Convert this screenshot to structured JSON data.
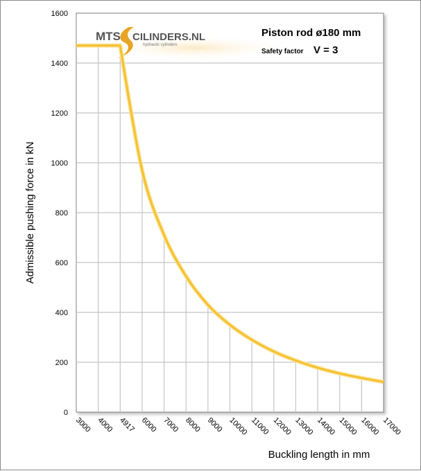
{
  "chart_data": {
    "type": "line",
    "xlabel": "Buckling length in mm",
    "ylabel": "Admissible pushing force in kN",
    "x_ticks": [
      "3000",
      "4000",
      "4917",
      "6000",
      "7000",
      "8000",
      "9000",
      "10000",
      "11000",
      "12000",
      "13000",
      "14000",
      "15000",
      "16000",
      "17000"
    ],
    "y_ticks": [
      "0",
      "200",
      "400",
      "600",
      "800",
      "1000",
      "1200",
      "1400",
      "1600"
    ],
    "ylim": [
      0,
      1600
    ],
    "grid": true,
    "series": [
      {
        "points": [
          [
            "3000",
            1470
          ],
          [
            "4000",
            1470
          ],
          [
            "4917",
            1470
          ],
          [
            "6000",
            970
          ],
          [
            "7000",
            710
          ],
          [
            "8000",
            545
          ],
          [
            "9000",
            430
          ],
          [
            "10000",
            350
          ],
          [
            "11000",
            290
          ],
          [
            "12000",
            243
          ],
          [
            "13000",
            207
          ],
          [
            "14000",
            178
          ],
          [
            "15000",
            155
          ],
          [
            "16000",
            137
          ],
          [
            "17000",
            121
          ]
        ]
      }
    ],
    "annotations": {
      "title_line1": "Piston rod ø180 mm",
      "safety_label": "Safety factor",
      "safety_value": "V = 3"
    },
    "logo": {
      "brand": "MTS",
      "brand_suffix": "CILINDERS.NL",
      "tagline": "hydraulic cylinders"
    },
    "colors": {
      "line": "#f5c131",
      "line_glow": "#fbe39a",
      "grid": "#c4c4c4"
    }
  }
}
